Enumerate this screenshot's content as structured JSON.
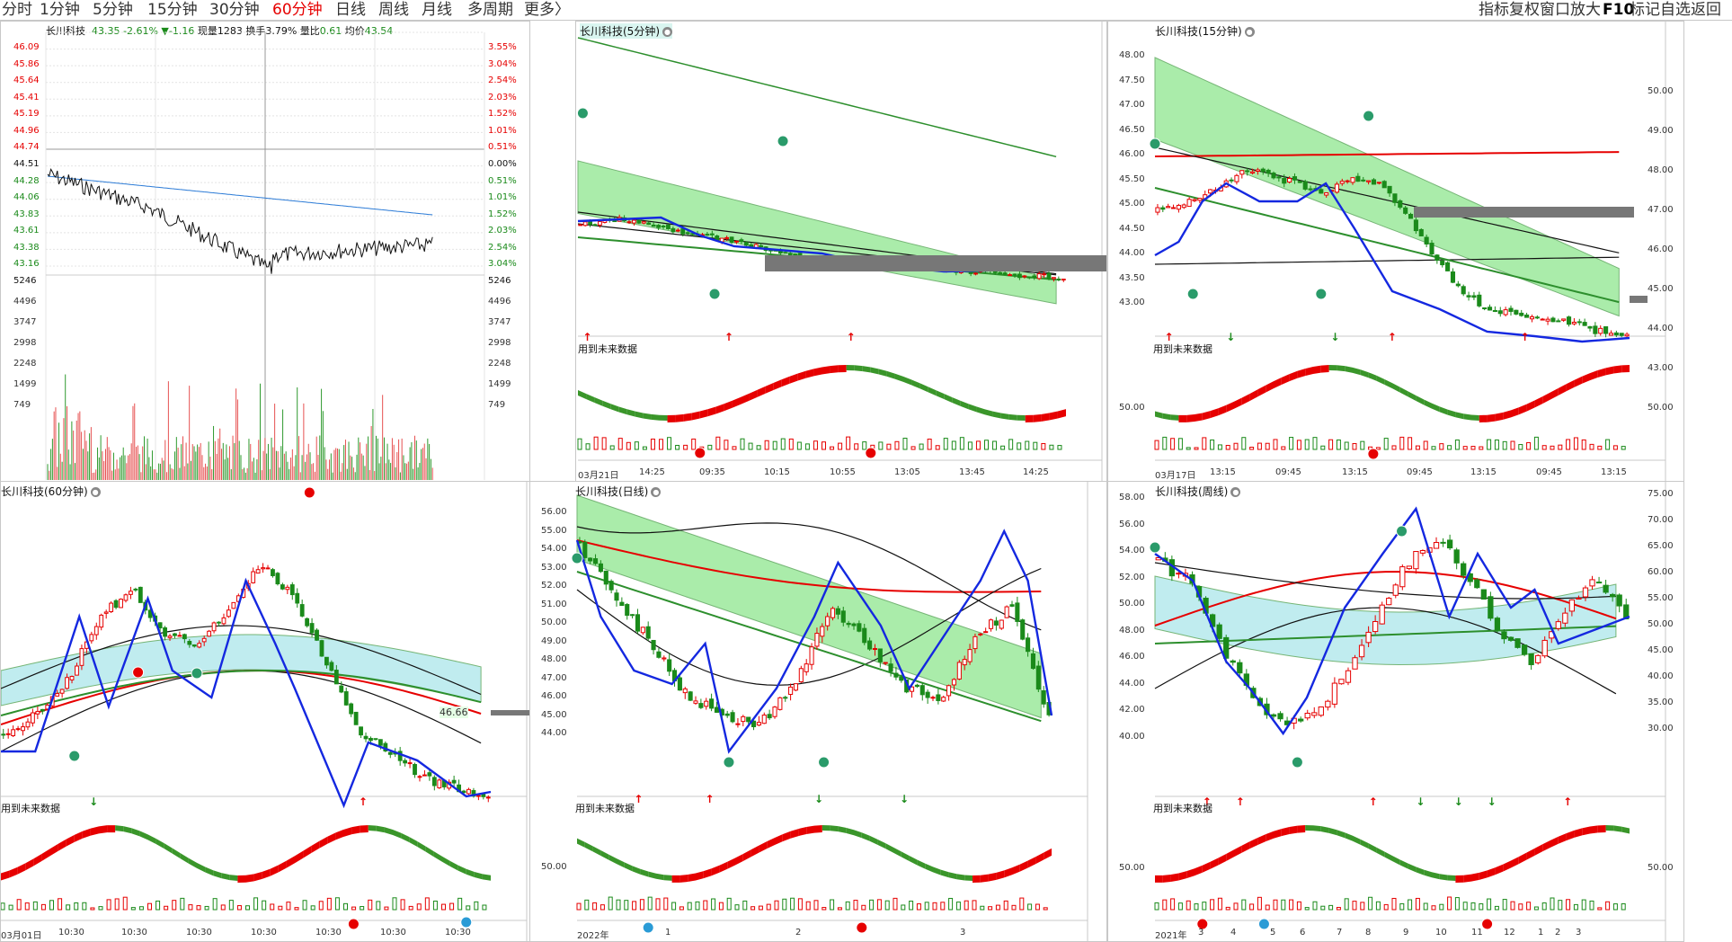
{
  "toolbar": {
    "periods": [
      "分时",
      "1分钟",
      "5分钟",
      "15分钟",
      "30分钟",
      "60分钟",
      "日线",
      "周线",
      "月线",
      "多周期",
      "更多〉"
    ],
    "active_period": "60分钟",
    "right_tools": [
      "指标",
      "复权",
      "窗口",
      "放大",
      "F10",
      "标记",
      "自选",
      "返回"
    ]
  },
  "intraday": {
    "stock": "长川科技",
    "price": "43.35",
    "pct": "-2.61%",
    "change": "▼-1.16",
    "volume_label": "现量",
    "volume": "1283",
    "turnover_label": "换手",
    "turnover": "3.79%",
    "ratio_label": "量比",
    "ratio": "0.61",
    "avg_label": "均价",
    "avg": "43.54",
    "price_ticks": [
      "46.09",
      "45.86",
      "45.64",
      "45.41",
      "45.19",
      "44.96",
      "44.74",
      "44.51",
      "44.28",
      "44.06",
      "43.83",
      "43.61",
      "43.38",
      "43.16",
      "5246"
    ],
    "pct_ticks": [
      "3.55%",
      "3.04%",
      "2.54%",
      "2.03%",
      "1.52%",
      "1.01%",
      "0.51%",
      "0.00%",
      "0.51%",
      "1.01%",
      "1.52%",
      "2.03%",
      "2.54%",
      "3.04%",
      "5246"
    ],
    "vol_ticks": [
      "4496",
      "3747",
      "2998",
      "2248",
      "1499",
      "749"
    ]
  },
  "panels": {
    "p5m": {
      "title": "长川科技(5分钟)",
      "future": "用到未来数据",
      "date_label": "03月21日",
      "times": [
        "14:25",
        "09:35",
        "10:15",
        "10:55",
        "13:05",
        "13:45",
        "14:25"
      ]
    },
    "p15m": {
      "title": "长川科技(15分钟)",
      "future": "用到未来数据",
      "date_label": "03月17日",
      "times": [
        "13:15",
        "09:45",
        "13:15",
        "09:45",
        "13:15",
        "09:45",
        "13:15"
      ],
      "left_ticks": [
        "48.00",
        "47.50",
        "47.00",
        "46.50",
        "46.00",
        "45.50",
        "45.00",
        "44.50",
        "44.00",
        "43.50",
        "43.00"
      ],
      "right_ticks": [
        "50.00",
        "49.00",
        "48.00",
        "47.00",
        "46.00",
        "45.00",
        "44.00",
        "43.00"
      ],
      "sub_tick": "50.00",
      "right_sub_tick": "50.00"
    },
    "p60m": {
      "title": "长川科技(60分钟)",
      "future": "用到未来数据",
      "date_label": "03月01日",
      "times": [
        "10:30",
        "10:30",
        "10:30",
        "10:30",
        "10:30",
        "10:30",
        "10:30"
      ],
      "flag": "46.66"
    },
    "pday": {
      "title": "长川科技(日线)",
      "future": "用到未来数据",
      "date_label": "2022年",
      "times": [
        "1",
        "2",
        "3"
      ],
      "left_ticks": [
        "56.00",
        "55.00",
        "54.00",
        "53.00",
        "52.00",
        "51.00",
        "50.00",
        "49.00",
        "48.00",
        "47.00",
        "46.00",
        "45.00",
        "44.00"
      ],
      "sub_tick": "50.00"
    },
    "pweek": {
      "title": "长川科技(周线)",
      "future": "用到未来数据",
      "date_label": "2021年",
      "times": [
        "3",
        "4",
        "5",
        "6",
        "7",
        "8",
        "9",
        "10",
        "11",
        "12",
        "1",
        "2",
        "3"
      ],
      "left_ticks": [
        "58.00",
        "56.00",
        "54.00",
        "52.00",
        "50.00",
        "48.00",
        "46.00",
        "44.00",
        "42.00",
        "40.00"
      ],
      "right_ticks": [
        "75.00",
        "70.00",
        "65.00",
        "60.00",
        "55.00",
        "50.00",
        "45.00",
        "40.00",
        "35.00",
        "30.00"
      ],
      "sub_tick": "50.00",
      "right_sub_tick": "50.00"
    }
  },
  "colors": {
    "up": "#e60000",
    "down": "#1a8a1a",
    "band": "#5cd65c",
    "ma_blue": "#1428e0"
  }
}
